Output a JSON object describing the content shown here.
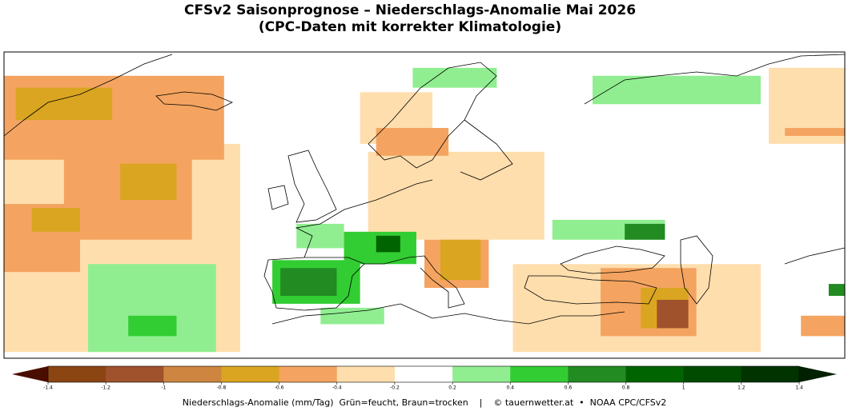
{
  "chart_data": {
    "type": "map",
    "title": "CFSv2 Saisonprognose – Niederschlags-Anomalie Mai 2026",
    "subtitle": "(CPC-Daten mit korrekter Klimatologie)",
    "xlim": [
      -45,
      70
    ],
    "ylim": [
      26,
      80
    ],
    "colorbar": {
      "levels": [
        -1.4,
        -1.2,
        -1,
        -0.8,
        -0.6,
        -0.4,
        -0.2,
        0.2,
        0.4,
        0.6,
        0.8,
        1,
        1.2,
        1.4
      ],
      "colors": [
        "#8b4513",
        "#a0522d",
        "#cd853f",
        "#daa520",
        "#f4a460",
        "#ffdead",
        "#ffffff",
        "#90ee90",
        "#32cd32",
        "#228b22",
        "#006400",
        "#004b00",
        "#003300"
      ],
      "under_color": "#4a0e00",
      "over_color": "#002000",
      "label": "Niederschlags-Anomalie (mm/Tag)  Grün=feucht, Braun=trocken    |    © tauernwetter.at  •  NOAA CPC/CFSv2"
    },
    "cells": [
      [
        -45,
        63.8,
        -12.7,
        27.1,
        -0.3
      ],
      [
        -45,
        75.8,
        -14.9,
        61,
        -0.5
      ],
      [
        -43.4,
        73.7,
        -30.2,
        68,
        -0.7
      ],
      [
        -36.8,
        61.7,
        -19.3,
        46.9,
        -0.5
      ],
      [
        -29.1,
        60.3,
        -21.4,
        53.9,
        -0.7
      ],
      [
        -45,
        53.2,
        -34.6,
        41.2,
        -0.5
      ],
      [
        -41.2,
        52.5,
        -34.6,
        48.3,
        -0.7
      ],
      [
        -33.5,
        42.6,
        -16,
        27.1,
        0.3
      ],
      [
        -28,
        33.5,
        -21.4,
        29.9,
        0.5
      ],
      [
        3.7,
        72.9,
        13.6,
        63.8,
        -0.3
      ],
      [
        4.8,
        62.4,
        28.9,
        46.9,
        -0.3
      ],
      [
        5.9,
        66.6,
        15.8,
        61.7,
        -0.5
      ],
      [
        10.9,
        77.2,
        22.4,
        73.7,
        0.3
      ],
      [
        35.5,
        75.8,
        58.5,
        70.8,
        0.3
      ],
      [
        59.6,
        77.2,
        70,
        63.8,
        -0.3
      ],
      [
        61.8,
        66.6,
        70,
        65.2,
        -0.5
      ],
      [
        -5,
        49.7,
        1.5,
        45.4,
        0.3
      ],
      [
        -8.3,
        43.3,
        3.7,
        35.6,
        0.5
      ],
      [
        -7.2,
        41.9,
        0.5,
        37,
        0.7
      ],
      [
        1.5,
        48.3,
        11.4,
        42.6,
        0.5
      ],
      [
        5.9,
        47.6,
        9.2,
        44.7,
        0.9
      ],
      [
        12.5,
        46.9,
        21.3,
        38.4,
        -0.5
      ],
      [
        14.7,
        46.9,
        20.2,
        39.8,
        -0.7
      ],
      [
        24.6,
        42.6,
        58.5,
        27.1,
        -0.3
      ],
      [
        30,
        50.4,
        45.4,
        46.9,
        0.3
      ],
      [
        39.9,
        49.7,
        45.4,
        46.9,
        0.7
      ],
      [
        36.6,
        41.9,
        49.7,
        29.9,
        -0.5
      ],
      [
        42.1,
        38.4,
        48.6,
        31.3,
        -0.7
      ],
      [
        44.3,
        36.3,
        48.6,
        31.3,
        -1.1
      ],
      [
        64,
        33.5,
        70,
        29.9,
        -0.5
      ],
      [
        -1.7,
        34.9,
        7,
        32,
        0.3
      ],
      [
        67.8,
        39.1,
        70,
        37,
        0.7
      ]
    ]
  }
}
